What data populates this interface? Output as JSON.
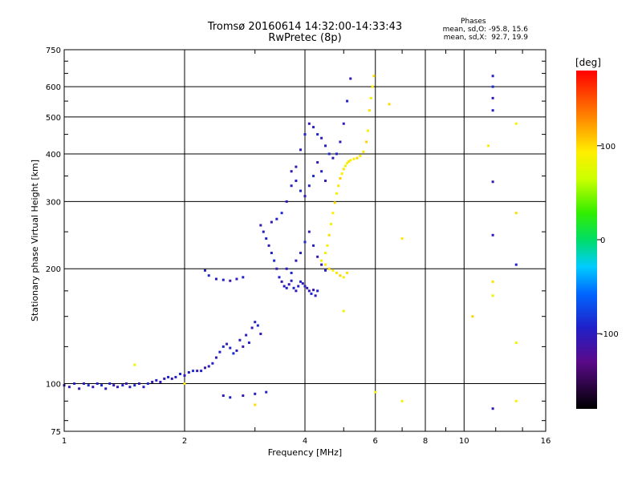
{
  "header": {
    "title": "Tromsø 20160614 14:32:00-14:33:43",
    "subtitle": "RwPretec (8p)"
  },
  "phase_stats": {
    "heading": "Phases",
    "line1": "mean, sd,O: -95.8, 15.6",
    "line2": "mean, sd,X:  92.7, 19.9"
  },
  "colorbar": {
    "unit_label": "[deg]",
    "ticks": [
      {
        "label": "100",
        "value": 100
      },
      {
        "label": "0",
        "value": 0
      },
      {
        "label": "-100",
        "value": -100
      }
    ],
    "range": [
      -180,
      180
    ]
  },
  "chart_data": {
    "type": "scatter",
    "title": "Tromsø 20160614 14:32:00-14:33:43",
    "subtitle": "RwPretec (8p)",
    "xlabel": "Frequency [MHz]",
    "ylabel": "Stationary phase Virtual Height [km]",
    "xscale": "log",
    "yscale": "log",
    "xlim": [
      1,
      16
    ],
    "ylim": [
      75,
      750
    ],
    "xticks": [
      {
        "label": "1",
        "value": 1
      },
      {
        "label": "2",
        "value": 2
      },
      {
        "label": "4",
        "value": 4
      },
      {
        "label": "6",
        "value": 6
      },
      {
        "label": "8",
        "value": 8
      },
      {
        "label": "10",
        "value": 10
      },
      {
        "label": "16",
        "value": 16
      }
    ],
    "yticks": [
      {
        "label": "75",
        "value": 75
      },
      {
        "label": "100",
        "value": 100
      },
      {
        "label": "200",
        "value": 200
      },
      {
        "label": "300",
        "value": 300
      },
      {
        "label": "400",
        "value": 400
      },
      {
        "label": "500",
        "value": 500
      },
      {
        "label": "600",
        "value": 600
      },
      {
        "label": "750",
        "value": 750
      }
    ],
    "grid": true,
    "series": [
      {
        "name": "O-mode",
        "phase_deg": -100,
        "points": [
          [
            1.0,
            99
          ],
          [
            1.03,
            98
          ],
          [
            1.06,
            100
          ],
          [
            1.09,
            97
          ],
          [
            1.12,
            100
          ],
          [
            1.15,
            99
          ],
          [
            1.18,
            98
          ],
          [
            1.21,
            100
          ],
          [
            1.24,
            99
          ],
          [
            1.27,
            97
          ],
          [
            1.3,
            100
          ],
          [
            1.33,
            99
          ],
          [
            1.36,
            98
          ],
          [
            1.4,
            99
          ],
          [
            1.43,
            100
          ],
          [
            1.46,
            98
          ],
          [
            1.5,
            99
          ],
          [
            1.54,
            100
          ],
          [
            1.58,
            98
          ],
          [
            1.62,
            100
          ],
          [
            1.66,
            101
          ],
          [
            1.7,
            102
          ],
          [
            1.74,
            101
          ],
          [
            1.78,
            103
          ],
          [
            1.82,
            104
          ],
          [
            1.86,
            103
          ],
          [
            1.9,
            104
          ],
          [
            1.95,
            106
          ],
          [
            2.0,
            105
          ],
          [
            2.05,
            107
          ],
          [
            2.1,
            108
          ],
          [
            2.15,
            108
          ],
          [
            2.2,
            108
          ],
          [
            2.25,
            110
          ],
          [
            2.3,
            111
          ],
          [
            2.35,
            113
          ],
          [
            2.4,
            117
          ],
          [
            2.45,
            121
          ],
          [
            2.5,
            125
          ],
          [
            2.55,
            127
          ],
          [
            2.6,
            124
          ],
          [
            2.65,
            120
          ],
          [
            2.7,
            122
          ],
          [
            2.75,
            130
          ],
          [
            2.8,
            125
          ],
          [
            2.85,
            134
          ],
          [
            2.9,
            128
          ],
          [
            2.95,
            140
          ],
          [
            3.0,
            145
          ],
          [
            3.05,
            142
          ],
          [
            3.1,
            135
          ],
          [
            2.25,
            198
          ],
          [
            2.3,
            192
          ],
          [
            2.4,
            188
          ],
          [
            2.5,
            187
          ],
          [
            2.6,
            186
          ],
          [
            2.7,
            188
          ],
          [
            2.8,
            190
          ],
          [
            3.1,
            260
          ],
          [
            3.15,
            250
          ],
          [
            3.2,
            240
          ],
          [
            3.25,
            230
          ],
          [
            3.3,
            220
          ],
          [
            3.35,
            210
          ],
          [
            3.4,
            200
          ],
          [
            3.45,
            190
          ],
          [
            3.5,
            185
          ],
          [
            3.55,
            180
          ],
          [
            3.6,
            178
          ],
          [
            3.65,
            182
          ],
          [
            3.7,
            186
          ],
          [
            3.75,
            178
          ],
          [
            3.8,
            175
          ],
          [
            3.85,
            180
          ],
          [
            3.9,
            185
          ],
          [
            3.95,
            183
          ],
          [
            4.0,
            180
          ],
          [
            4.05,
            178
          ],
          [
            4.1,
            175
          ],
          [
            4.15,
            172
          ],
          [
            4.2,
            176
          ],
          [
            4.25,
            170
          ],
          [
            4.3,
            175
          ],
          [
            3.3,
            265
          ],
          [
            3.4,
            270
          ],
          [
            3.5,
            280
          ],
          [
            3.6,
            300
          ],
          [
            3.7,
            330
          ],
          [
            3.8,
            370
          ],
          [
            3.9,
            410
          ],
          [
            4.0,
            450
          ],
          [
            4.1,
            480
          ],
          [
            4.2,
            470
          ],
          [
            4.3,
            450
          ],
          [
            4.4,
            440
          ],
          [
            4.5,
            420
          ],
          [
            4.6,
            400
          ],
          [
            4.7,
            390
          ],
          [
            4.8,
            400
          ],
          [
            4.9,
            430
          ],
          [
            5.0,
            480
          ],
          [
            5.1,
            550
          ],
          [
            5.2,
            630
          ],
          [
            3.6,
            200
          ],
          [
            3.7,
            195
          ],
          [
            3.8,
            210
          ],
          [
            3.9,
            220
          ],
          [
            4.0,
            235
          ],
          [
            4.1,
            250
          ],
          [
            4.2,
            230
          ],
          [
            4.3,
            215
          ],
          [
            4.4,
            205
          ],
          [
            4.5,
            198
          ],
          [
            3.7,
            360
          ],
          [
            3.8,
            340
          ],
          [
            3.9,
            320
          ],
          [
            4.0,
            310
          ],
          [
            4.1,
            330
          ],
          [
            4.2,
            350
          ],
          [
            4.3,
            380
          ],
          [
            4.4,
            360
          ],
          [
            4.5,
            340
          ],
          [
            2.5,
            93
          ],
          [
            2.6,
            92
          ],
          [
            2.8,
            93
          ],
          [
            3.0,
            94
          ],
          [
            3.2,
            95
          ],
          [
            11.8,
            86
          ],
          [
            11.8,
            640
          ],
          [
            11.8,
            600
          ],
          [
            11.8,
            560
          ],
          [
            11.8,
            520
          ],
          [
            11.8,
            338
          ],
          [
            11.8,
            245
          ],
          [
            13.5,
            205
          ]
        ]
      },
      {
        "name": "X-mode",
        "phase_deg": 95,
        "points": [
          [
            4.5,
            220
          ],
          [
            4.55,
            230
          ],
          [
            4.6,
            245
          ],
          [
            4.65,
            262
          ],
          [
            4.7,
            280
          ],
          [
            4.75,
            298
          ],
          [
            4.8,
            315
          ],
          [
            4.85,
            330
          ],
          [
            4.9,
            345
          ],
          [
            4.95,
            355
          ],
          [
            5.0,
            365
          ],
          [
            5.05,
            372
          ],
          [
            5.1,
            378
          ],
          [
            5.15,
            382
          ],
          [
            5.2,
            385
          ],
          [
            5.3,
            388
          ],
          [
            5.4,
            390
          ],
          [
            5.5,
            395
          ],
          [
            5.6,
            405
          ],
          [
            5.7,
            430
          ],
          [
            5.75,
            460
          ],
          [
            5.8,
            520
          ],
          [
            5.85,
            560
          ],
          [
            5.9,
            600
          ],
          [
            5.95,
            640
          ],
          [
            4.4,
            210
          ],
          [
            4.5,
            205
          ],
          [
            4.6,
            200
          ],
          [
            4.7,
            198
          ],
          [
            4.8,
            195
          ],
          [
            4.9,
            192
          ],
          [
            5.0,
            190
          ],
          [
            5.1,
            195
          ],
          [
            1.5,
            112
          ],
          [
            2.0,
            100
          ],
          [
            3.0,
            88
          ],
          [
            5.0,
            155
          ],
          [
            6.0,
            95
          ],
          [
            6.5,
            540
          ],
          [
            7.0,
            90
          ],
          [
            7.0,
            240
          ],
          [
            10.5,
            150
          ],
          [
            11.5,
            420
          ],
          [
            11.8,
            185
          ],
          [
            11.8,
            170
          ],
          [
            13.5,
            480
          ],
          [
            13.5,
            280
          ],
          [
            13.5,
            128
          ],
          [
            13.5,
            90
          ]
        ]
      }
    ]
  }
}
